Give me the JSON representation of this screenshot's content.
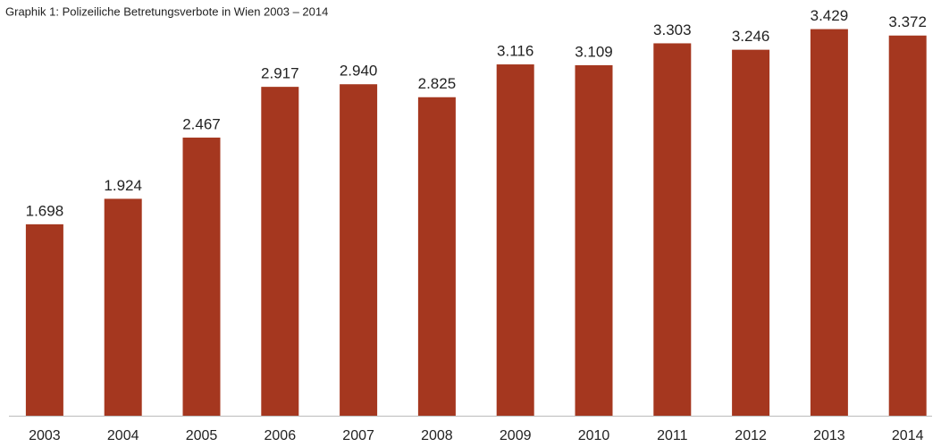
{
  "chart_data": {
    "type": "bar",
    "title": "Graphik 1: Polizeiliche Betretungsverbote in Wien 2003 – 2014",
    "categories": [
      "2003",
      "2004",
      "2005",
      "2006",
      "2007",
      "2008",
      "2009",
      "2010",
      "2011",
      "2012",
      "2013",
      "2014"
    ],
    "values": [
      1698,
      1924,
      2467,
      2917,
      2940,
      2825,
      3116,
      3109,
      3303,
      3246,
      3429,
      3372
    ],
    "value_labels": [
      "1.698",
      "1.924",
      "2.467",
      "2.917",
      "2.940",
      "2.825",
      "3.116",
      "3.109",
      "3.303",
      "3.246",
      "3.429",
      "3.372"
    ],
    "color": "#a5371f",
    "ylim": [
      0,
      3600
    ]
  }
}
